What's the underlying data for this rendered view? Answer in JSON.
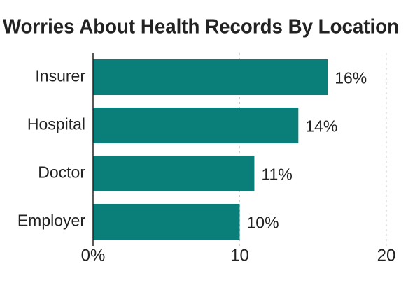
{
  "chart_data": {
    "type": "barh",
    "title": "Worries About Health Records By Location",
    "categories": [
      "Insurer",
      "Hospital",
      "Doctor",
      "Employer"
    ],
    "values": [
      16,
      14,
      11,
      10
    ],
    "value_labels": [
      "16%",
      "14%",
      "11%",
      "10%"
    ],
    "color": "#0a7f7a",
    "xlim": [
      0,
      20
    ],
    "xticks": [
      {
        "value": 0,
        "label": "0%"
      },
      10,
      20
    ],
    "grid": true
  }
}
